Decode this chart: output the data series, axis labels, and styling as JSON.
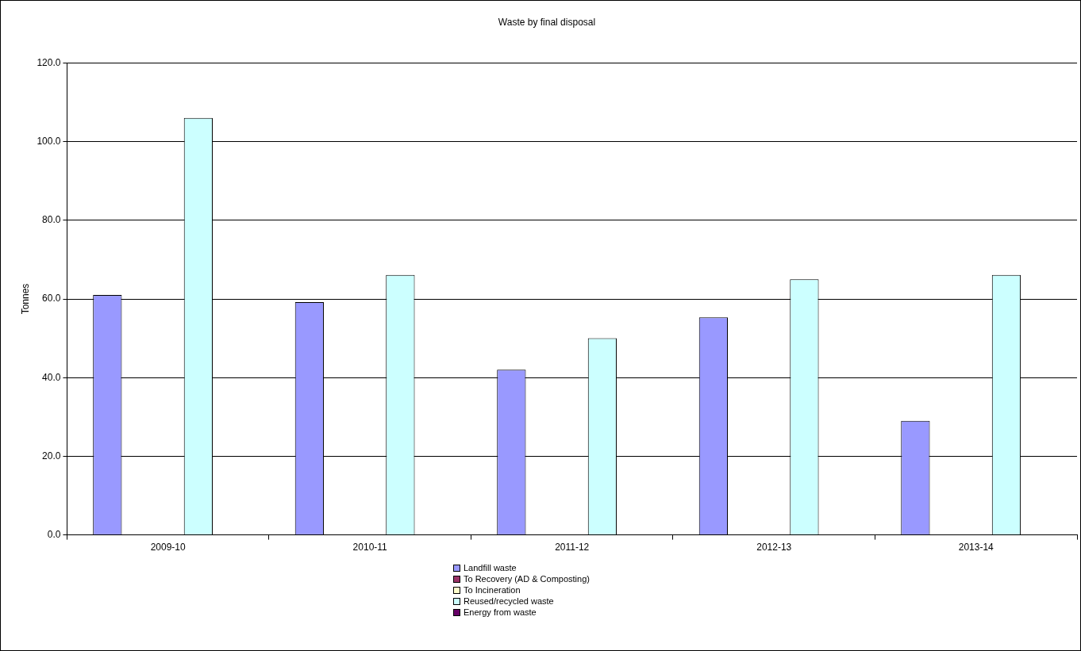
{
  "chart_data": {
    "type": "bar",
    "title": "Waste by final disposal",
    "ylabel": "Tonnes",
    "categories": [
      "2009-10",
      "2010-11",
      "2011-12",
      "2012-13",
      "2013-14"
    ],
    "series": [
      {
        "name": "Landfill waste",
        "color": "#9999ff",
        "values": [
          61,
          59.2,
          42,
          55.3,
          29
        ]
      },
      {
        "name": "To Recovery (AD & Composting)",
        "color": "#993366",
        "values": [
          0,
          0,
          0,
          0,
          0
        ]
      },
      {
        "name": "To Incineration",
        "color": "#ffffcc",
        "values": [
          0,
          0,
          0,
          0,
          0
        ]
      },
      {
        "name": "Reused/recycled waste",
        "color": "#ccffff",
        "values": [
          106,
          66.1,
          50,
          65,
          66.1
        ]
      },
      {
        "name": "Energy from waste",
        "color": "#660066",
        "values": [
          0,
          0,
          0,
          0,
          0
        ]
      }
    ],
    "ylim": [
      0,
      120
    ],
    "yticks": [
      {
        "value": 0,
        "label": "0.0"
      },
      {
        "value": 20,
        "label": "20.0"
      },
      {
        "value": 40,
        "label": "40.0"
      },
      {
        "value": 60,
        "label": "60.0"
      },
      {
        "value": 80,
        "label": "80.0"
      },
      {
        "value": 100,
        "label": "100.0"
      },
      {
        "value": 120,
        "label": "120.0"
      }
    ],
    "grid": "y",
    "legend": "bottom"
  }
}
